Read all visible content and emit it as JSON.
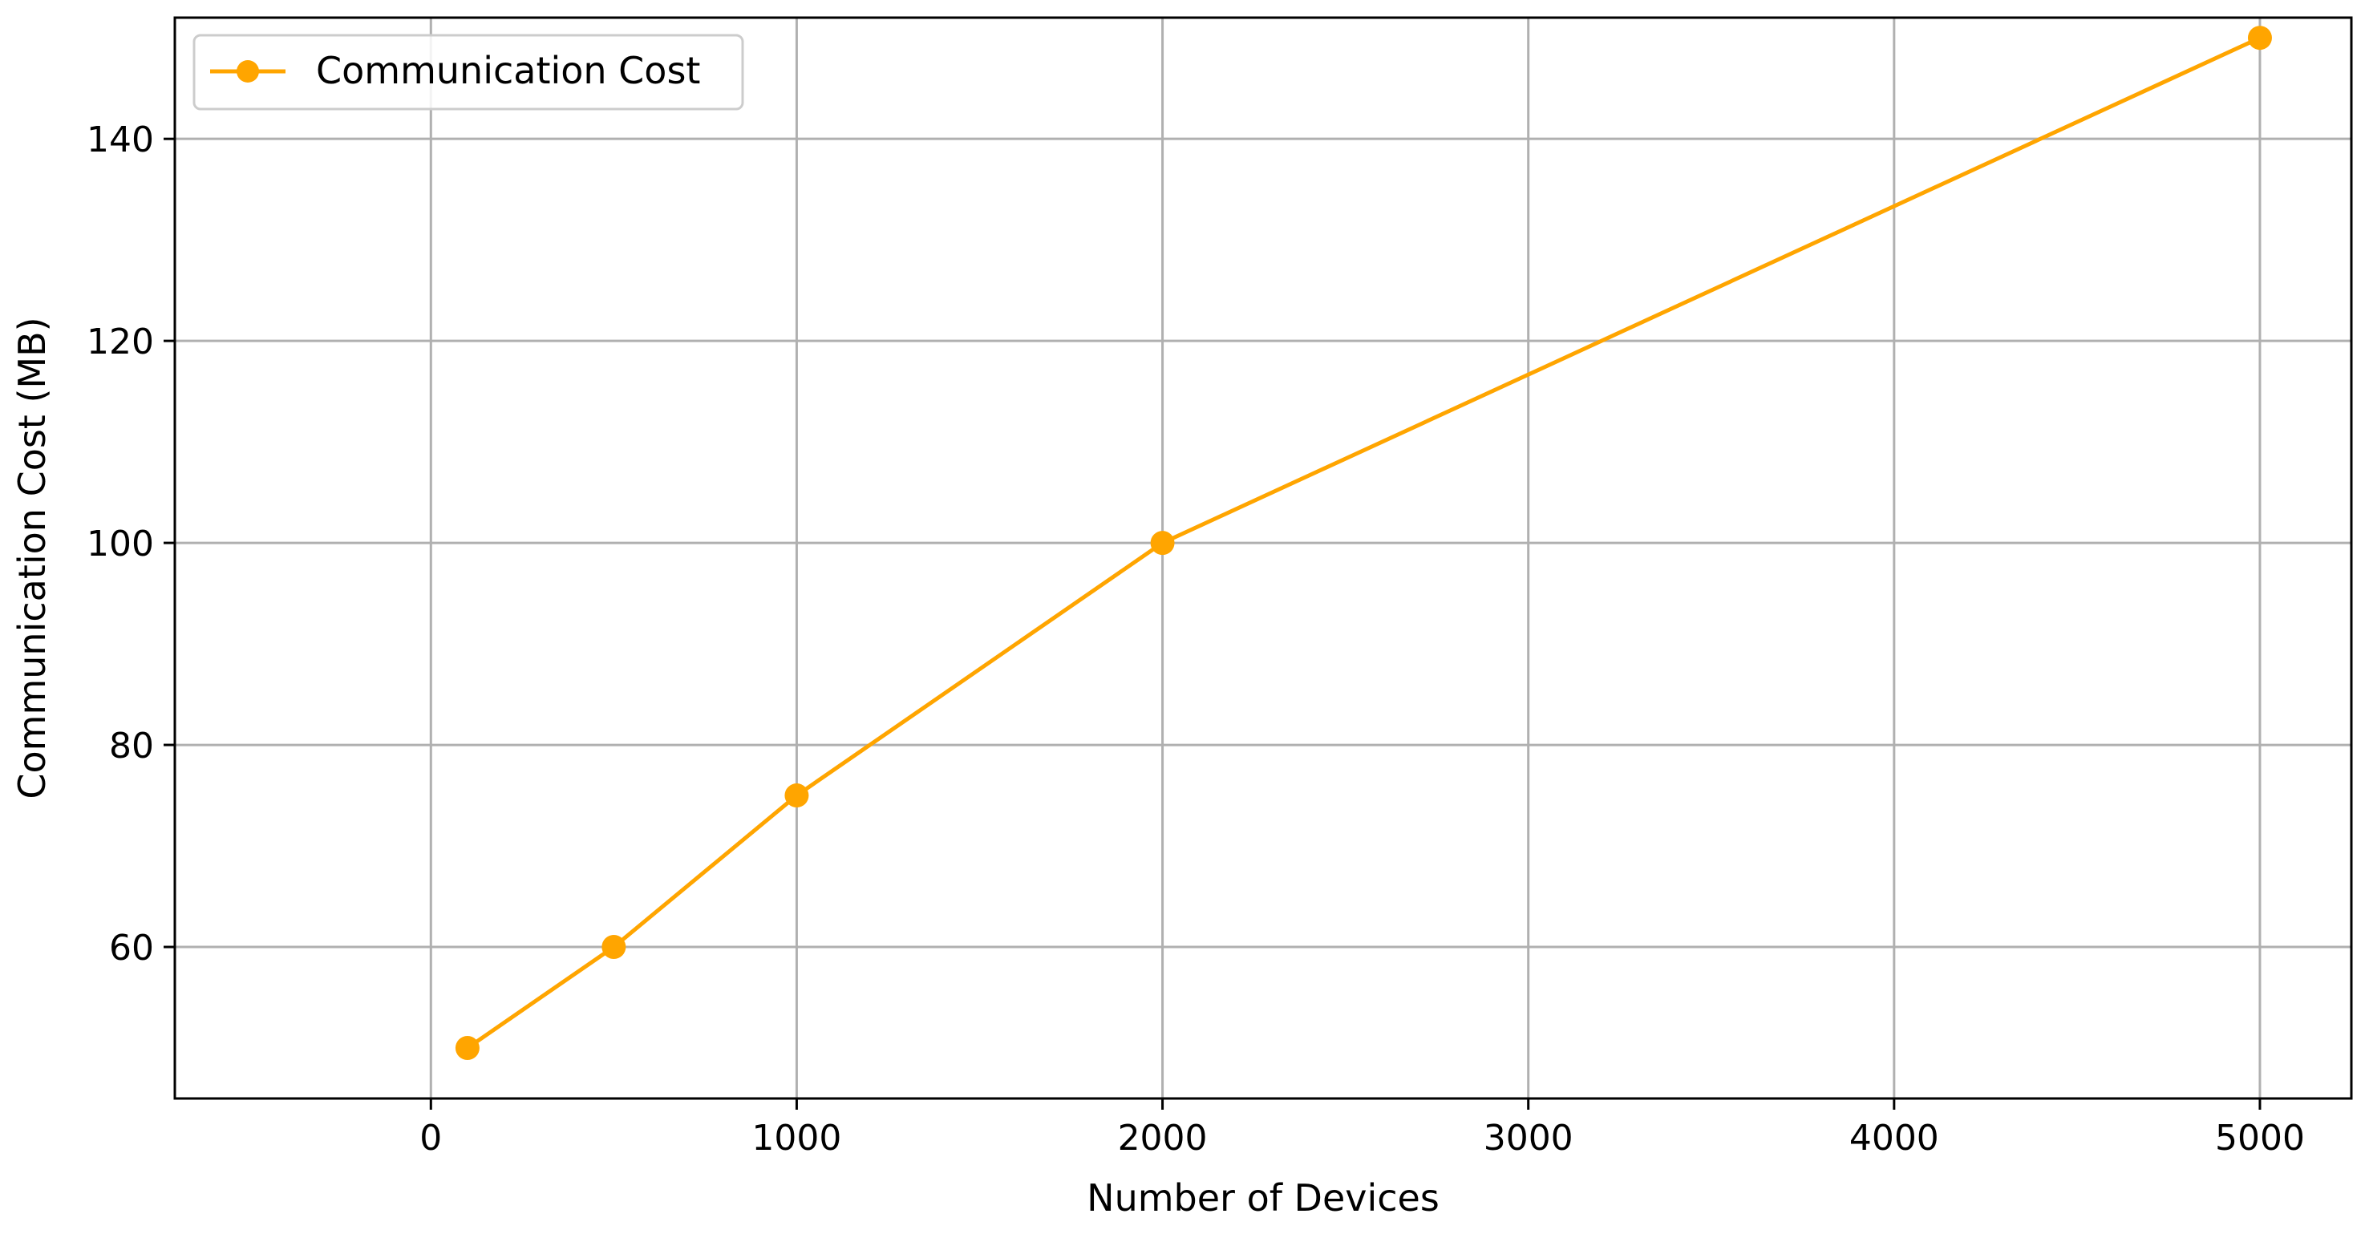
{
  "chart_data": {
    "type": "line",
    "title": "",
    "xlabel": "Number of Devices",
    "ylabel": "Communication Cost (MB)",
    "xlim": [
      -700,
      5250
    ],
    "ylim": [
      45,
      152
    ],
    "xticks": [
      0,
      1000,
      2000,
      3000,
      4000,
      5000
    ],
    "yticks": [
      60,
      80,
      100,
      120,
      140
    ],
    "grid": true,
    "legend_position": "top-left",
    "series": [
      {
        "name": "Communication Cost",
        "color": "#FFA500",
        "marker": "circle",
        "x": [
          100,
          500,
          1000,
          2000,
          5000
        ],
        "y": [
          50,
          60,
          75,
          100,
          150
        ]
      }
    ]
  }
}
